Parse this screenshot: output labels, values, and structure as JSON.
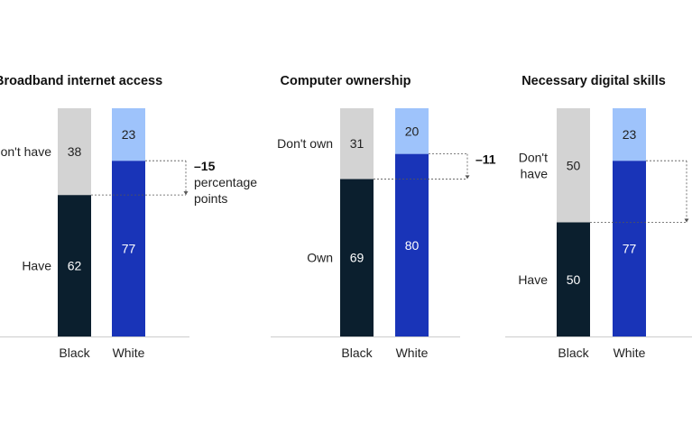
{
  "chart_data": [
    {
      "type": "bar",
      "stacked": true,
      "title": "Broadband internet access",
      "categories": [
        "Black",
        "White"
      ],
      "series": [
        {
          "name": "Have",
          "values": [
            62,
            77
          ]
        },
        {
          "name": "Don't have",
          "values": [
            38,
            23
          ]
        }
      ],
      "row_labels": {
        "top": "Don't have",
        "bottom": [
          "Have"
        ]
      },
      "gap_annotation": {
        "value": "–15",
        "lines": [
          "percentage",
          "points"
        ]
      },
      "ylim": [
        0,
        100
      ]
    },
    {
      "type": "bar",
      "stacked": true,
      "title": "Computer ownership",
      "categories": [
        "Black",
        "White"
      ],
      "series": [
        {
          "name": "Own",
          "values": [
            69,
            80
          ]
        },
        {
          "name": "Don't own",
          "values": [
            31,
            20
          ]
        }
      ],
      "row_labels": {
        "top": "Don't own",
        "bottom": [
          "Own"
        ]
      },
      "gap_annotation": {
        "value": "–11",
        "lines": []
      },
      "ylim": [
        0,
        100
      ]
    },
    {
      "type": "bar",
      "stacked": true,
      "title": "Necessary digital skills",
      "categories": [
        "Black",
        "White"
      ],
      "series": [
        {
          "name": "Have",
          "values": [
            50,
            77
          ]
        },
        {
          "name": "Don't have",
          "values": [
            50,
            23
          ]
        }
      ],
      "row_labels": {
        "top": "Don't\nhave",
        "bottom": [
          "Have"
        ]
      },
      "gap_annotation": {
        "value": "",
        "lines": []
      },
      "ylim": [
        0,
        100
      ]
    }
  ],
  "colors": {
    "black_bottom": "#0b1f2e",
    "black_top": "#d3d3d3",
    "white_bottom": "#1934b8",
    "white_top": "#9ec3fb",
    "axis": "#cccccc",
    "dashed": "#555555"
  }
}
